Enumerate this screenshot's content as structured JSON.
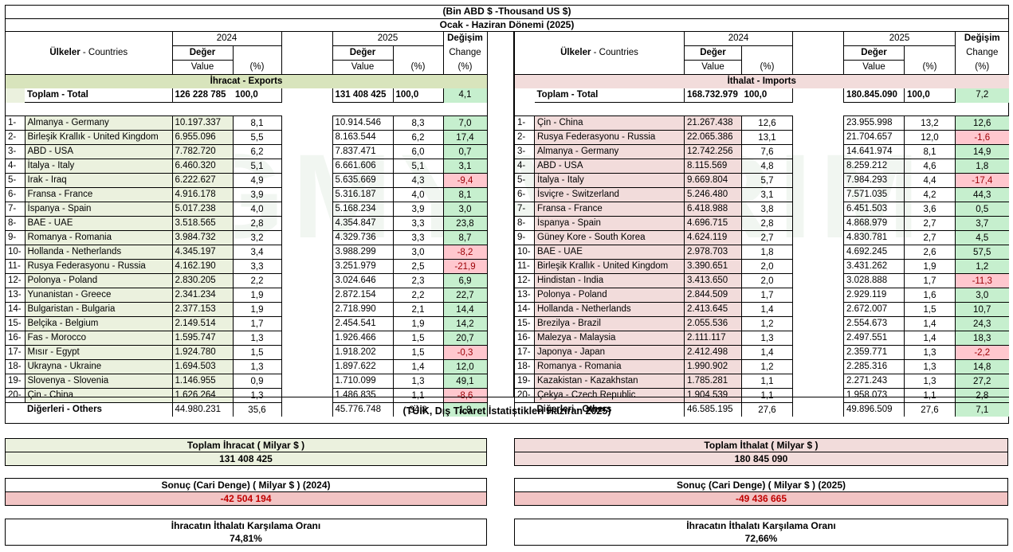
{
  "header": {
    "unit": "(Bin ABD $ -Thousand US $)",
    "period": "Ocak - Haziran Dönemi (2025)"
  },
  "watermark": "SGMYATIRIM",
  "colhead": {
    "countries_tr": "Ülkeler",
    "countries_en": "- Countries",
    "y2024": "2024",
    "y2025": "2025",
    "deger": "Değer",
    "value": "Value",
    "pct": "(%)",
    "degisim": "Değişim",
    "change": "Change",
    "change_pct": "(%)"
  },
  "exports": {
    "section": "İhracat - Exports",
    "total": {
      "label": "Toplam - Total",
      "v2024": "126 228 785",
      "p2024": "100,0",
      "v2025": "131 408 425",
      "p2025": "100,0",
      "chg": "4,1"
    },
    "rows": [
      {
        "rank": "1-",
        "name": "Almanya - Germany",
        "v2024": "10.197.337",
        "p2024": "8,1",
        "v2025": "10.914.546",
        "p2025": "8,3",
        "chg": "7,0",
        "neg": false
      },
      {
        "rank": "2-",
        "name": "Birleşik Krallık - United Kingdom",
        "v2024": "6.955.096",
        "p2024": "5,5",
        "v2025": "8.163.544",
        "p2025": "6,2",
        "chg": "17,4",
        "neg": false
      },
      {
        "rank": "3-",
        "name": "ABD - USA",
        "v2024": "7.782.720",
        "p2024": "6,2",
        "v2025": "7.837.471",
        "p2025": "6,0",
        "chg": "0,7",
        "neg": false
      },
      {
        "rank": "4-",
        "name": "İtalya - Italy",
        "v2024": "6.460.320",
        "p2024": "5,1",
        "v2025": "6.661.606",
        "p2025": "5,1",
        "chg": "3,1",
        "neg": false
      },
      {
        "rank": "5-",
        "name": "Irak - Iraq",
        "v2024": "6.222.627",
        "p2024": "4,9",
        "v2025": "5.635.669",
        "p2025": "4,3",
        "chg": "-9,4",
        "neg": true
      },
      {
        "rank": "6-",
        "name": "Fransa - France",
        "v2024": "4.916.178",
        "p2024": "3,9",
        "v2025": "5.316.187",
        "p2025": "4,0",
        "chg": "8,1",
        "neg": false
      },
      {
        "rank": "7-",
        "name": "İspanya - Spain",
        "v2024": "5.017.238",
        "p2024": "4,0",
        "v2025": "5.168.234",
        "p2025": "3,9",
        "chg": "3,0",
        "neg": false
      },
      {
        "rank": "8-",
        "name": "BAE - UAE",
        "v2024": "3.518.565",
        "p2024": "2,8",
        "v2025": "4.354.847",
        "p2025": "3,3",
        "chg": "23,8",
        "neg": false
      },
      {
        "rank": "9-",
        "name": "Romanya - Romania",
        "v2024": "3.984.732",
        "p2024": "3,2",
        "v2025": "4.329.736",
        "p2025": "3,3",
        "chg": "8,7",
        "neg": false
      },
      {
        "rank": "10-",
        "name": "Hollanda - Netherlands",
        "v2024": "4.345.197",
        "p2024": "3,4",
        "v2025": "3.988.299",
        "p2025": "3,0",
        "chg": "-8,2",
        "neg": true
      },
      {
        "rank": "11-",
        "name": "Rusya Federasyonu - Russia",
        "v2024": "4.162.190",
        "p2024": "3,3",
        "v2025": "3.251.979",
        "p2025": "2,5",
        "chg": "-21,9",
        "neg": true
      },
      {
        "rank": "12-",
        "name": "Polonya - Poland",
        "v2024": "2.830.205",
        "p2024": "2,2",
        "v2025": "3.024.646",
        "p2025": "2,3",
        "chg": "6,9",
        "neg": false
      },
      {
        "rank": "13-",
        "name": "Yunanistan - Greece",
        "v2024": "2.341.234",
        "p2024": "1,9",
        "v2025": "2.872.154",
        "p2025": "2,2",
        "chg": "22,7",
        "neg": false
      },
      {
        "rank": "14-",
        "name": "Bulgaristan - Bulgaria",
        "v2024": "2.377.153",
        "p2024": "1,9",
        "v2025": "2.718.990",
        "p2025": "2,1",
        "chg": "14,4",
        "neg": false
      },
      {
        "rank": "15-",
        "name": "Belçika - Belgium",
        "v2024": "2.149.514",
        "p2024": "1,7",
        "v2025": "2.454.541",
        "p2025": "1,9",
        "chg": "14,2",
        "neg": false
      },
      {
        "rank": "16-",
        "name": "Fas - Morocco",
        "v2024": "1.595.747",
        "p2024": "1,3",
        "v2025": "1.926.466",
        "p2025": "1,5",
        "chg": "20,7",
        "neg": false
      },
      {
        "rank": "17-",
        "name": "Mısır - Egypt",
        "v2024": "1.924.780",
        "p2024": "1,5",
        "v2025": "1.918.202",
        "p2025": "1,5",
        "chg": "-0,3",
        "neg": true
      },
      {
        "rank": "18-",
        "name": "Ukrayna - Ukraine",
        "v2024": "1.694.503",
        "p2024": "1,3",
        "v2025": "1.897.622",
        "p2025": "1,4",
        "chg": "12,0",
        "neg": false
      },
      {
        "rank": "19-",
        "name": "Slovenya - Slovenia",
        "v2024": "1.146.955",
        "p2024": "0,9",
        "v2025": "1.710.099",
        "p2025": "1,3",
        "chg": "49,1",
        "neg": false
      },
      {
        "rank": "20-",
        "name": "Çin - China",
        "v2024": "1.626.264",
        "p2024": "1,3",
        "v2025": "1.486.835",
        "p2025": "1,1",
        "chg": "-8,6",
        "neg": true
      }
    ],
    "others": {
      "label": "Diğerleri - Others",
      "v2024": "44.980.231",
      "p2024": "35,6",
      "v2025": "45.776.748",
      "p2025": "34,8",
      "chg": "1,8"
    }
  },
  "imports": {
    "section": "İthalat - Imports",
    "total": {
      "label": "Toplam - Total",
      "v2024": "168.732.979",
      "p2024": "100,0",
      "v2025": "180.845.090",
      "p2025": "100,0",
      "chg": "7,2"
    },
    "rows": [
      {
        "rank": "1-",
        "name": "Çin - China",
        "v2024": "21.267.438",
        "p2024": "12,6",
        "v2025": "23.955.998",
        "p2025": "13,2",
        "chg": "12,6",
        "neg": false
      },
      {
        "rank": "2-",
        "name": "Rusya Federasyonu - Russia",
        "v2024": "22.065.386",
        "p2024": "13,1",
        "v2025": "21.704.657",
        "p2025": "12,0",
        "chg": "-1,6",
        "neg": true
      },
      {
        "rank": "3-",
        "name": "Almanya - Germany",
        "v2024": "12.742.256",
        "p2024": "7,6",
        "v2025": "14.641.974",
        "p2025": "8,1",
        "chg": "14,9",
        "neg": false
      },
      {
        "rank": "4-",
        "name": "ABD - USA",
        "v2024": "8.115.569",
        "p2024": "4,8",
        "v2025": "8.259.212",
        "p2025": "4,6",
        "chg": "1,8",
        "neg": false
      },
      {
        "rank": "5-",
        "name": "İtalya - Italy",
        "v2024": "9.669.804",
        "p2024": "5,7",
        "v2025": "7.984.293",
        "p2025": "4,4",
        "chg": "-17,4",
        "neg": true
      },
      {
        "rank": "6-",
        "name": "İsviçre - Switzerland",
        "v2024": "5.246.480",
        "p2024": "3,1",
        "v2025": "7.571.035",
        "p2025": "4,2",
        "chg": "44,3",
        "neg": false
      },
      {
        "rank": "7-",
        "name": "Fransa - France",
        "v2024": "6.418.988",
        "p2024": "3,8",
        "v2025": "6.451.503",
        "p2025": "3,6",
        "chg": "0,5",
        "neg": false
      },
      {
        "rank": "8-",
        "name": "İspanya - Spain",
        "v2024": "4.696.715",
        "p2024": "2,8",
        "v2025": "4.868.979",
        "p2025": "2,7",
        "chg": "3,7",
        "neg": false
      },
      {
        "rank": "9-",
        "name": "Güney Kore - South Korea",
        "v2024": "4.624.119",
        "p2024": "2,7",
        "v2025": "4.830.781",
        "p2025": "2,7",
        "chg": "4,5",
        "neg": false
      },
      {
        "rank": "10-",
        "name": "BAE - UAE",
        "v2024": "2.978.703",
        "p2024": "1,8",
        "v2025": "4.692.245",
        "p2025": "2,6",
        "chg": "57,5",
        "neg": false
      },
      {
        "rank": "11-",
        "name": "Birleşik Krallık - United Kingdom",
        "v2024": "3.390.651",
        "p2024": "2,0",
        "v2025": "3.431.262",
        "p2025": "1,9",
        "chg": "1,2",
        "neg": false
      },
      {
        "rank": "12-",
        "name": "Hindistan - India",
        "v2024": "3.413.650",
        "p2024": "2,0",
        "v2025": "3.028.888",
        "p2025": "1,7",
        "chg": "-11,3",
        "neg": true
      },
      {
        "rank": "13-",
        "name": "Polonya - Poland",
        "v2024": "2.844.509",
        "p2024": "1,7",
        "v2025": "2.929.119",
        "p2025": "1,6",
        "chg": "3,0",
        "neg": false
      },
      {
        "rank": "14-",
        "name": "Hollanda - Netherlands",
        "v2024": "2.413.645",
        "p2024": "1,4",
        "v2025": "2.672.007",
        "p2025": "1,5",
        "chg": "10,7",
        "neg": false
      },
      {
        "rank": "15-",
        "name": "Brezilya - Brazil",
        "v2024": "2.055.536",
        "p2024": "1,2",
        "v2025": "2.554.673",
        "p2025": "1,4",
        "chg": "24,3",
        "neg": false
      },
      {
        "rank": "16-",
        "name": "Malezya - Malaysia",
        "v2024": "2.111.117",
        "p2024": "1,3",
        "v2025": "2.497.551",
        "p2025": "1,4",
        "chg": "18,3",
        "neg": false
      },
      {
        "rank": "17-",
        "name": "Japonya - Japan",
        "v2024": "2.412.498",
        "p2024": "1,4",
        "v2025": "2.359.771",
        "p2025": "1,3",
        "chg": "-2,2",
        "neg": true
      },
      {
        "rank": "18-",
        "name": "Romanya - Romania",
        "v2024": "1.990.902",
        "p2024": "1,2",
        "v2025": "2.285.316",
        "p2025": "1,3",
        "chg": "14,8",
        "neg": false
      },
      {
        "rank": "19-",
        "name": "Kazakistan - Kazakhstan",
        "v2024": "1.785.281",
        "p2024": "1,1",
        "v2025": "2.271.243",
        "p2025": "1,3",
        "chg": "27,2",
        "neg": false
      },
      {
        "rank": "20-",
        "name": "Çekya - Czech Republic",
        "v2024": "1.904.539",
        "p2024": "1,1",
        "v2025": "1.958.073",
        "p2025": "1,1",
        "chg": "2,8",
        "neg": false
      }
    ],
    "others": {
      "label": "Diğerleri - Others",
      "v2024": "46.585.195",
      "p2024": "27,6",
      "v2025": "49.896.509",
      "p2025": "27,6",
      "chg": "7,1"
    }
  },
  "source": "(TÜİK, Dış Ticaret İstatistikleri Haziran 2025)",
  "summary": {
    "total_exports_label": "Toplam İhracat ( Milyar $ )",
    "total_exports_value": "131 408 425",
    "total_imports_label": "Toplam İthalat ( Milyar $ )",
    "total_imports_value": "180 845 090",
    "balance_2024_label": "Sonuç (Cari Denge) ( Milyar $ ) (2024)",
    "balance_2024_value": "-42 504 194",
    "balance_2025_label": "Sonuç (Cari Denge) ( Milyar $ ) (2025)",
    "balance_2025_value": "-49 436 665",
    "coverage_left_label": "İhracatın İthalatı Karşılama Oranı",
    "coverage_left_value": "74,81%",
    "coverage_right_label": "İhracatın İthalatı Karşılama Oranı",
    "coverage_right_value": "72,66%"
  },
  "colors": {
    "export_bg": "#ebf1de",
    "export_section": "#d8e4bc",
    "import_bg": "#f2dcdb",
    "positive": "#c6efce",
    "negative": "#ffc7ce",
    "negative_text": "#9c0006"
  }
}
